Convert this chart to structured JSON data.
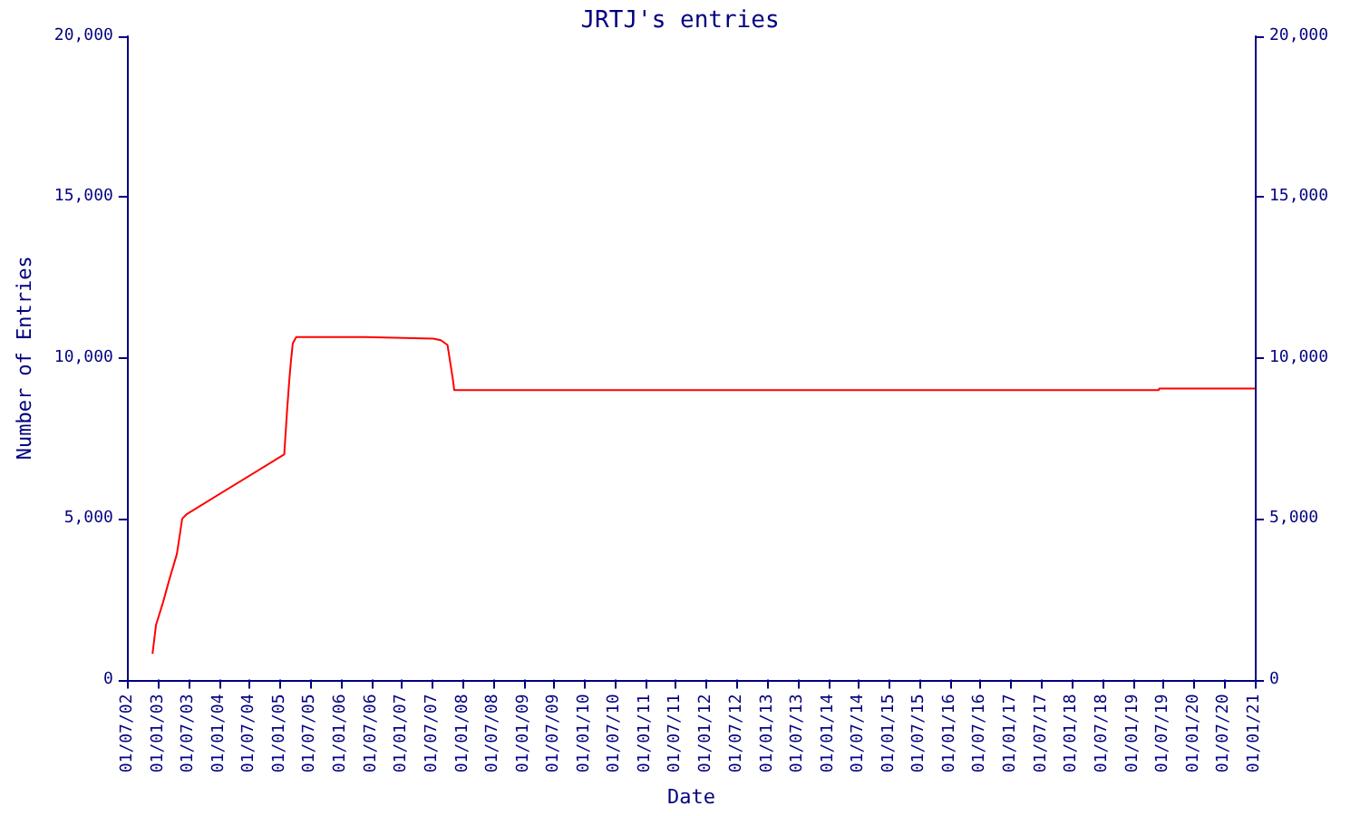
{
  "chart_data": {
    "type": "line",
    "title": "JRTJ's entries",
    "xlabel": "Date",
    "ylabel": "Number of Entries",
    "x": [
      "2002-11-27",
      "2002-12-18",
      "2003-01-29",
      "2003-03-10",
      "2003-04-22",
      "2003-05-24",
      "2003-06-22",
      "2005-01-25",
      "2005-02-10",
      "2005-02-24",
      "2005-03-06",
      "2005-03-17",
      "2005-04-07",
      "2006-05-22",
      "2007-07-08",
      "2007-08-22",
      "2007-10-01",
      "2007-11-03",
      "2007-11-10",
      "2019-06-05",
      "2019-06-08",
      "2021-01-01"
    ],
    "series": [
      {
        "color": "#ff0000",
        "values": [
          800,
          1700,
          2400,
          3150,
          3900,
          5000,
          5150,
          7000,
          8300,
          9300,
          9900,
          10450,
          10650,
          10650,
          10600,
          10550,
          10400,
          9300,
          9000,
          9000,
          9050,
          9050
        ]
      }
    ],
    "xlim": [
      "2002-07-01",
      "2021-01-01"
    ],
    "xticks": [
      {
        "value": "2002-07-01",
        "label": "01/07/02"
      },
      {
        "value": "2003-01-01",
        "label": "01/01/03"
      },
      {
        "value": "2003-07-01",
        "label": "01/07/03"
      },
      {
        "value": "2004-01-01",
        "label": "01/01/04"
      },
      {
        "value": "2004-07-01",
        "label": "01/07/04"
      },
      {
        "value": "2005-01-01",
        "label": "01/01/05"
      },
      {
        "value": "2005-07-01",
        "label": "01/07/05"
      },
      {
        "value": "2006-01-01",
        "label": "01/01/06"
      },
      {
        "value": "2006-07-01",
        "label": "01/07/06"
      },
      {
        "value": "2007-01-01",
        "label": "01/01/07"
      },
      {
        "value": "2007-07-01",
        "label": "01/07/07"
      },
      {
        "value": "2008-01-01",
        "label": "01/01/08"
      },
      {
        "value": "2008-07-01",
        "label": "01/07/08"
      },
      {
        "value": "2009-01-01",
        "label": "01/01/09"
      },
      {
        "value": "2009-07-01",
        "label": "01/07/09"
      },
      {
        "value": "2010-01-01",
        "label": "01/01/10"
      },
      {
        "value": "2010-07-01",
        "label": "01/07/10"
      },
      {
        "value": "2011-01-01",
        "label": "01/01/11"
      },
      {
        "value": "2011-07-01",
        "label": "01/07/11"
      },
      {
        "value": "2012-01-01",
        "label": "01/01/12"
      },
      {
        "value": "2012-07-01",
        "label": "01/07/12"
      },
      {
        "value": "2013-01-01",
        "label": "01/01/13"
      },
      {
        "value": "2013-07-01",
        "label": "01/07/13"
      },
      {
        "value": "2014-01-01",
        "label": "01/01/14"
      },
      {
        "value": "2014-07-01",
        "label": "01/07/14"
      },
      {
        "value": "2015-01-01",
        "label": "01/01/15"
      },
      {
        "value": "2015-07-01",
        "label": "01/07/15"
      },
      {
        "value": "2016-01-01",
        "label": "01/01/16"
      },
      {
        "value": "2016-07-01",
        "label": "01/07/16"
      },
      {
        "value": "2017-01-01",
        "label": "01/01/17"
      },
      {
        "value": "2017-07-01",
        "label": "01/07/17"
      },
      {
        "value": "2018-01-01",
        "label": "01/01/18"
      },
      {
        "value": "2018-07-01",
        "label": "01/07/18"
      },
      {
        "value": "2019-01-01",
        "label": "01/01/19"
      },
      {
        "value": "2019-07-01",
        "label": "01/07/19"
      },
      {
        "value": "2020-01-01",
        "label": "01/01/20"
      },
      {
        "value": "2020-07-01",
        "label": "01/07/20"
      },
      {
        "value": "2021-01-01",
        "label": "01/01/21"
      }
    ],
    "ylim": [
      0,
      20000
    ],
    "yticks": [
      0,
      {
        "value": 5000,
        "label": "5,000"
      },
      {
        "value": 10000,
        "label": "10,000"
      },
      {
        "value": 15000,
        "label": "15,000"
      },
      {
        "value": 20000,
        "label": "20,000"
      }
    ],
    "y2lim": [
      0,
      20000
    ],
    "y2ticks": [
      0,
      {
        "value": 5000,
        "label": "5,000"
      },
      {
        "value": 10000,
        "label": "10,000"
      },
      {
        "value": 15000,
        "label": "15,000"
      },
      {
        "value": 20000,
        "label": "20,000"
      }
    ],
    "grid": false,
    "marker": "none",
    "line_style": "solid"
  }
}
